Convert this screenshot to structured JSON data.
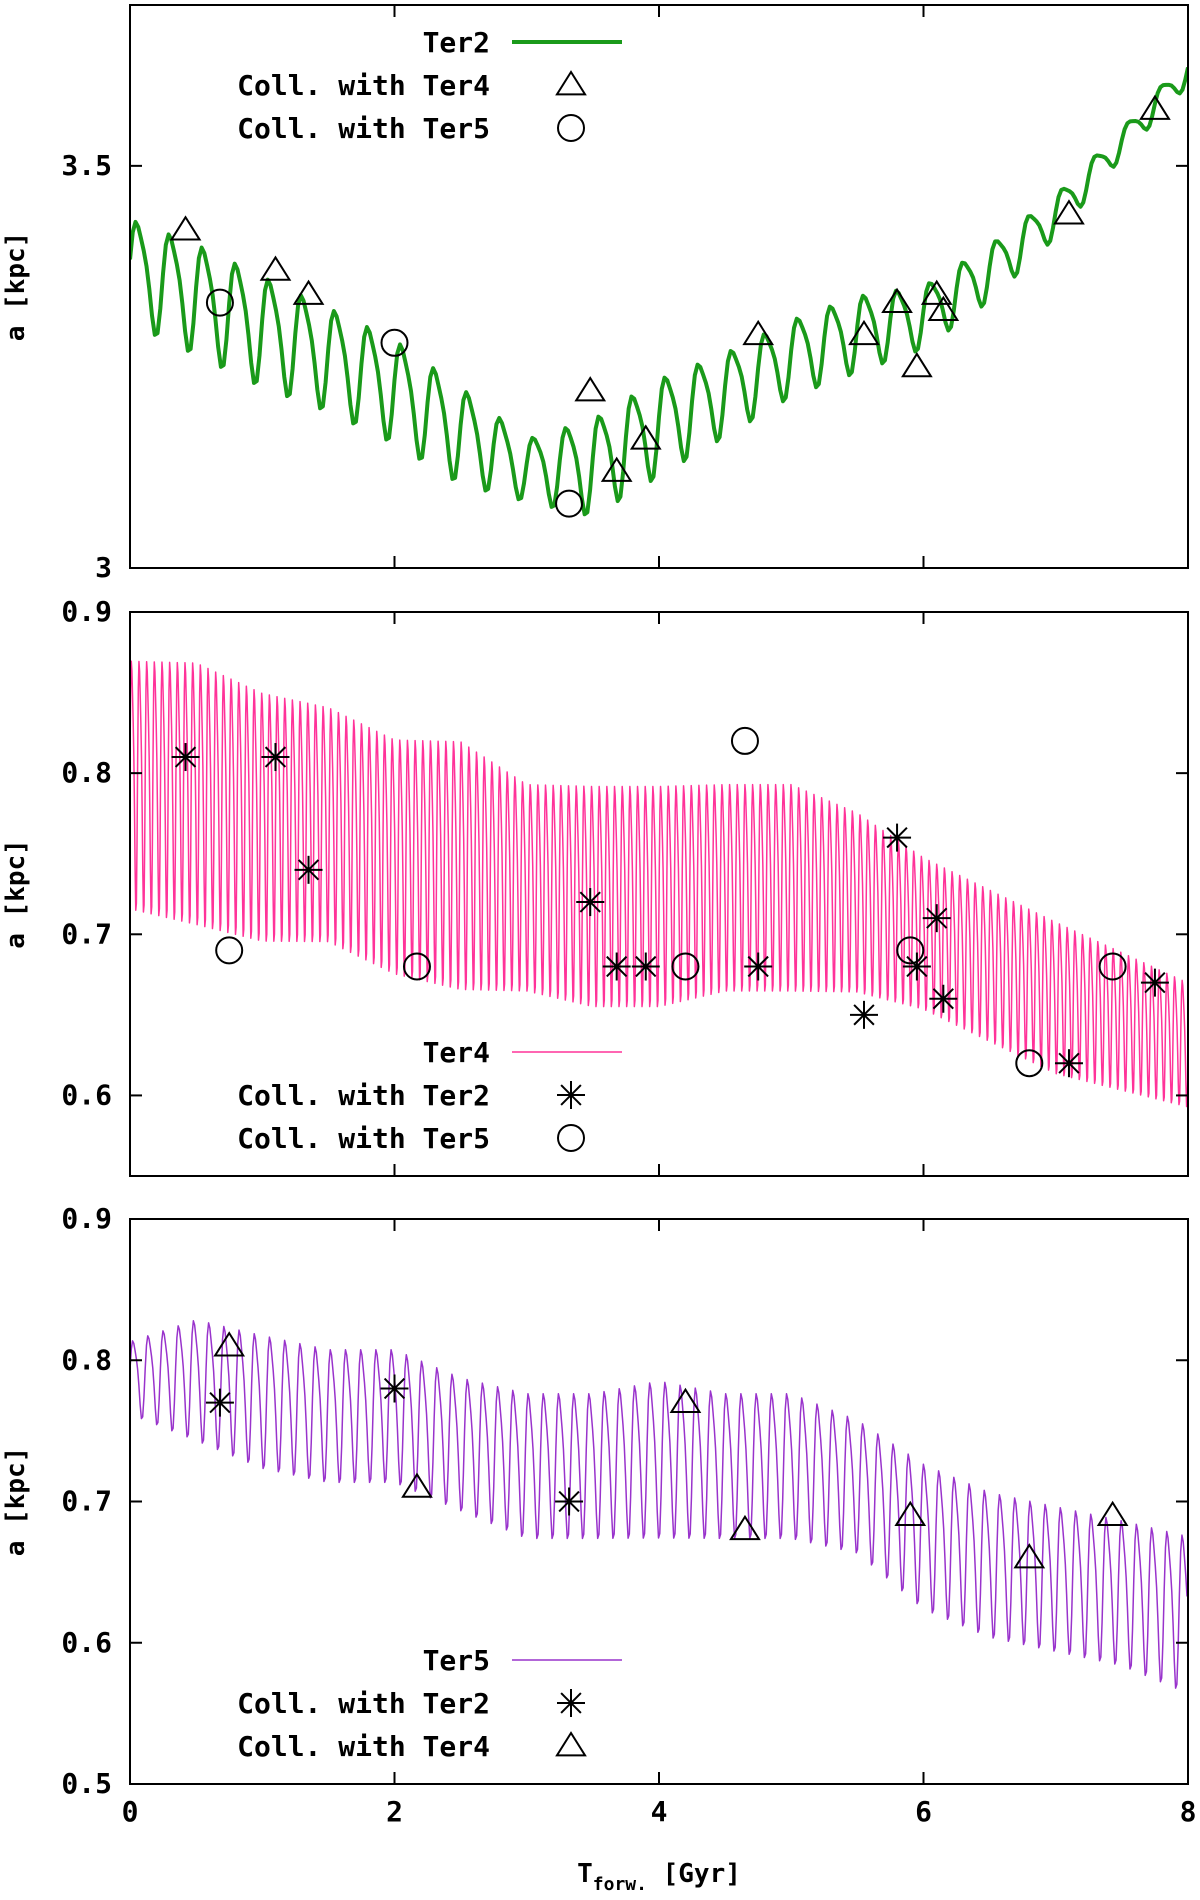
{
  "chart_data": [
    {
      "type": "line",
      "ylabel": "a [kpc]",
      "ylim": [
        3,
        3.7
      ],
      "yticks": [
        3,
        3.5
      ],
      "xlim": [
        0,
        8
      ],
      "xticks": [
        0,
        2,
        4,
        6,
        8
      ],
      "show_xtick_labels": false,
      "xlabel": "",
      "legend_position": "top-center",
      "series": [
        {
          "name": "Ter2",
          "style": "line",
          "color": "#1a9a1a",
          "line_width": 4,
          "envelope": {
            "x": [
              0,
              0.5,
              1,
              1.5,
              2,
              2.5,
              3,
              3.5,
              4,
              4.5,
              5,
              5.5,
              6,
              6.5,
              7,
              7.5,
              8
            ],
            "upper": [
              3.45,
              3.42,
              3.38,
              3.34,
              3.3,
              3.24,
              3.17,
              3.2,
              3.25,
              3.28,
              3.32,
              3.35,
              3.36,
              3.41,
              3.47,
              3.55,
              3.64
            ],
            "lower": [
              3.3,
              3.26,
              3.22,
              3.19,
              3.15,
              3.1,
              3.08,
              3.06,
              3.11,
              3.16,
              3.21,
              3.24,
              3.27,
              3.33,
              3.41,
              3.51,
              3.6
            ]
          },
          "oscillation_period": 0.25
        }
      ],
      "markers": [
        {
          "name": "Coll. with Ter4",
          "symbol": "triangle",
          "x": [
            0.42,
            1.1,
            1.35,
            3.48,
            3.68,
            3.9,
            4.75,
            5.55,
            5.8,
            5.95,
            6.1,
            6.15,
            7.1,
            7.75
          ],
          "y": [
            3.42,
            3.37,
            3.34,
            3.22,
            3.12,
            3.16,
            3.29,
            3.29,
            3.33,
            3.25,
            3.34,
            3.32,
            3.44,
            3.57
          ]
        },
        {
          "name": "Coll. with Ter5",
          "symbol": "circle",
          "x": [
            0.68,
            2.0,
            3.32
          ],
          "y": [
            3.33,
            3.28,
            3.08
          ]
        }
      ]
    },
    {
      "type": "line",
      "ylabel": "a [kpc]",
      "ylim": [
        0.55,
        0.9
      ],
      "yticks": [
        0.6,
        0.7,
        0.8,
        0.9
      ],
      "xlim": [
        0,
        8
      ],
      "xticks": [
        0,
        2,
        4,
        6,
        8
      ],
      "show_xtick_labels": false,
      "xlabel": "",
      "legend_position": "bottom-center",
      "series": [
        {
          "name": "Ter4",
          "style": "line",
          "color": "#ff3399",
          "line_width": 1.5,
          "envelope": {
            "x": [
              0,
              0.5,
              1,
              1.5,
              2,
              2.5,
              3,
              3.5,
              4,
              4.5,
              5,
              5.5,
              6,
              6.5,
              7,
              7.5,
              8
            ],
            "upper": [
              0.89,
              0.89,
              0.87,
              0.86,
              0.84,
              0.84,
              0.81,
              0.81,
              0.81,
              0.81,
              0.81,
              0.79,
              0.76,
              0.74,
              0.72,
              0.7,
              0.68
            ],
            "lower": [
              0.71,
              0.7,
              0.69,
              0.69,
              0.67,
              0.66,
              0.66,
              0.65,
              0.65,
              0.66,
              0.66,
              0.66,
              0.65,
              0.63,
              0.61,
              0.6,
              0.59
            ]
          },
          "oscillation_period": 0.058
        }
      ],
      "markers": [
        {
          "name": "Coll. with Ter2",
          "symbol": "star",
          "x": [
            0.42,
            1.1,
            1.35,
            3.48,
            3.68,
            3.9,
            4.75,
            5.55,
            5.8,
            5.95,
            6.1,
            6.15,
            7.1,
            7.75
          ],
          "y": [
            0.81,
            0.81,
            0.74,
            0.72,
            0.68,
            0.68,
            0.68,
            0.65,
            0.76,
            0.68,
            0.71,
            0.66,
            0.62,
            0.67
          ]
        },
        {
          "name": "Coll. with Ter5",
          "symbol": "circle",
          "x": [
            0.75,
            2.17,
            4.2,
            4.65,
            5.9,
            6.8,
            7.43
          ],
          "y": [
            0.69,
            0.68,
            0.68,
            0.82,
            0.69,
            0.62,
            0.68
          ]
        }
      ]
    },
    {
      "type": "line",
      "ylabel": "a [kpc]",
      "ylim": [
        0.5,
        0.9
      ],
      "yticks": [
        0.5,
        0.6,
        0.7,
        0.8,
        0.9
      ],
      "xlim": [
        0,
        8
      ],
      "xticks": [
        0,
        2,
        4,
        6,
        8
      ],
      "show_xtick_labels": true,
      "xlabel": "T",
      "xlabel_sub": "forw.",
      "xlabel_unit": " [Gyr]",
      "legend_position": "bottom-center",
      "series": [
        {
          "name": "Ter5",
          "style": "line",
          "color": "#9933cc",
          "line_width": 1.5,
          "envelope": {
            "x": [
              0,
              0.5,
              1,
              1.5,
              2,
              2.5,
              3,
              3.5,
              4,
              4.5,
              5,
              5.5,
              6,
              6.5,
              7,
              7.5,
              8
            ],
            "upper": [
              0.82,
              0.84,
              0.83,
              0.82,
              0.82,
              0.8,
              0.79,
              0.79,
              0.8,
              0.79,
              0.79,
              0.77,
              0.74,
              0.72,
              0.71,
              0.7,
              0.69
            ],
            "lower": [
              0.76,
              0.74,
              0.72,
              0.71,
              0.71,
              0.69,
              0.67,
              0.67,
              0.67,
              0.67,
              0.67,
              0.66,
              0.62,
              0.6,
              0.59,
              0.58,
              0.56
            ]
          },
          "oscillation_period": 0.115
        }
      ],
      "markers": [
        {
          "name": "Coll. with Ter2",
          "symbol": "star",
          "x": [
            0.68,
            2.0,
            3.32
          ],
          "y": [
            0.77,
            0.78,
            0.7
          ]
        },
        {
          "name": "Coll. with Ter4",
          "symbol": "triangle",
          "x": [
            0.75,
            2.17,
            4.2,
            4.65,
            5.9,
            6.8,
            7.43
          ],
          "y": [
            0.81,
            0.71,
            0.77,
            0.68,
            0.69,
            0.66,
            0.69
          ]
        }
      ]
    }
  ]
}
